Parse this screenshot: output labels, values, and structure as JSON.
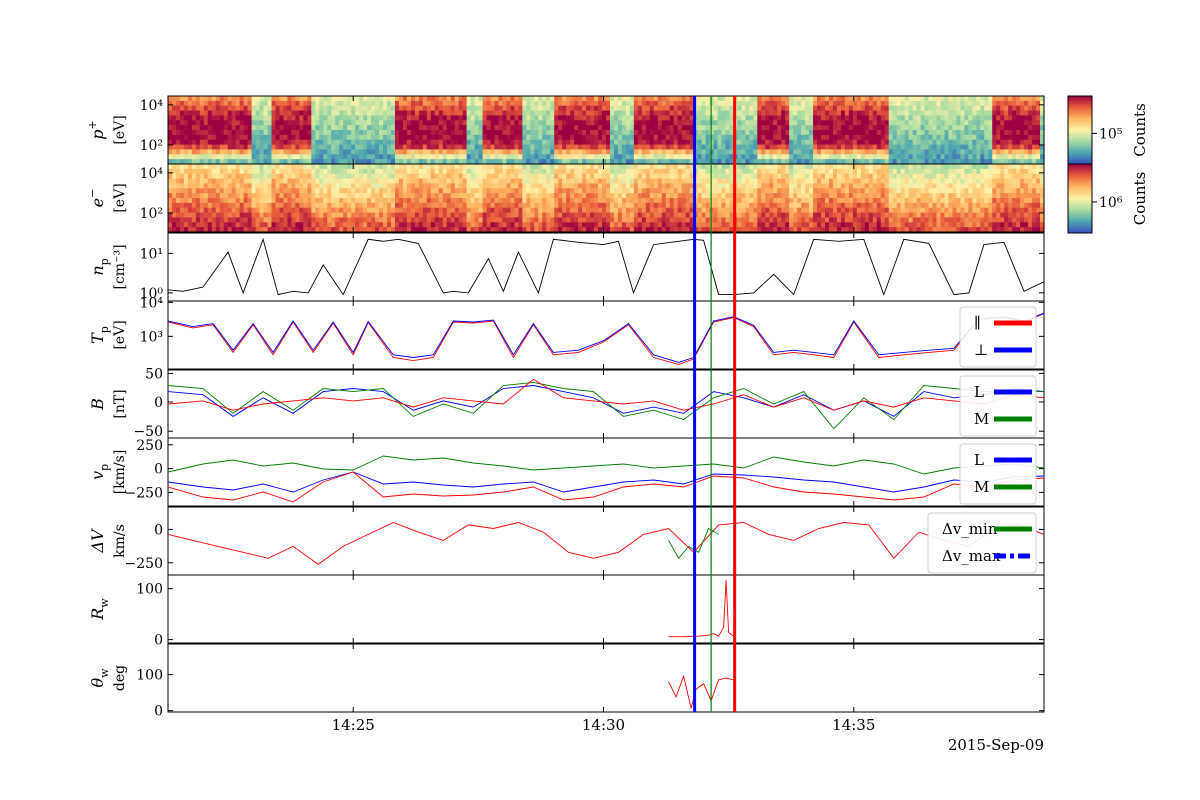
{
  "figure": {
    "date_label": "2015-Sep-09",
    "x_ticks": [
      "14:25",
      "14:30",
      "14:35"
    ],
    "x_range_min": [
      21.3,
      38.8
    ],
    "colorbar": {
      "label_top": "Counts",
      "label_bottom": "Counts",
      "tick_top": "10⁵",
      "tick_bottom": "10⁶",
      "colors": [
        "#3b4cc0",
        "#4ca6b0",
        "#a6dba0",
        "#fdf2a9",
        "#fdb863",
        "#e95c3b",
        "#9e0142"
      ]
    },
    "event_lines": [
      {
        "name": "start",
        "time_min": 31.82,
        "color": "#0000ff",
        "width": "thick"
      },
      {
        "name": "center",
        "time_min": 32.15,
        "color": "#008000",
        "width": "thin"
      },
      {
        "name": "end",
        "time_min": 32.62,
        "color": "#ff0000",
        "width": "thick"
      }
    ]
  },
  "chart_data": [
    {
      "type": "heatmap",
      "panel": "p+",
      "ylabel_main": "p",
      "ylabel_sup": "+",
      "ylabel_unit": "[eV]",
      "yscale": "log",
      "ytick_labels": [
        "10⁴",
        "10²"
      ],
      "hot_intervals_min": [
        [
          21.3,
          23.0
        ],
        [
          23.4,
          24.2
        ],
        [
          25.8,
          27.3
        ],
        [
          27.6,
          28.4
        ],
        [
          29.0,
          30.1
        ],
        [
          30.6,
          31.8
        ],
        [
          33.1,
          33.7
        ],
        [
          34.2,
          35.7
        ],
        [
          37.8,
          38.7
        ]
      ]
    },
    {
      "type": "heatmap",
      "panel": "e-",
      "ylabel_main": "e",
      "ylabel_sup": "−",
      "ylabel_unit": "[eV]",
      "yscale": "log",
      "ytick_labels": [
        "10⁴",
        "10²"
      ],
      "hot_intervals_min": [
        [
          21.3,
          23.0
        ],
        [
          23.4,
          24.2
        ],
        [
          25.8,
          27.3
        ],
        [
          27.6,
          28.4
        ],
        [
          29.0,
          30.1
        ],
        [
          30.6,
          31.8
        ],
        [
          33.1,
          33.7
        ],
        [
          34.2,
          35.7
        ],
        [
          37.8,
          38.7
        ]
      ]
    },
    {
      "type": "line",
      "panel": "n_p",
      "ylabel_main": "n",
      "ylabel_sub": "p",
      "ylabel_unit": "[cm⁻³]",
      "yscale": "log",
      "ytick_labels": [
        "10¹",
        "10⁰"
      ],
      "series": [
        {
          "color": "#000000",
          "x": [
            21.3,
            21.6,
            22.0,
            22.5,
            22.8,
            23.2,
            23.5,
            23.8,
            24.1,
            24.4,
            24.8,
            25.3,
            25.6,
            25.9,
            26.3,
            26.8,
            27.0,
            27.3,
            27.7,
            28.0,
            28.3,
            28.7,
            29.0,
            29.5,
            30.0,
            30.3,
            30.6,
            31.0,
            31.5,
            31.8,
            32.0,
            32.3,
            32.6,
            33.0,
            33.4,
            33.8,
            34.2,
            34.7,
            35.2,
            35.6,
            36.0,
            36.5,
            37.0,
            37.3,
            37.6,
            38.0,
            38.4,
            38.8
          ],
          "y": [
            1.3,
            1.2,
            1.5,
            10,
            1.1,
            20,
            1.0,
            1.2,
            1.1,
            5,
            1.0,
            20,
            18,
            20,
            16,
            1.1,
            1.2,
            1.1,
            7,
            1.2,
            10,
            1.1,
            20,
            17,
            15,
            18,
            1.1,
            15,
            18,
            20,
            19,
            1.0,
            1.0,
            1.1,
            3,
            1.0,
            20,
            18,
            20,
            1.0,
            20,
            16,
            1.0,
            1.1,
            15,
            17,
            1.2,
            2
          ]
        }
      ]
    },
    {
      "type": "line",
      "panel": "T_p",
      "ylabel_main": "T",
      "ylabel_sub": "p",
      "ylabel_unit": "[eV]",
      "yscale": "log",
      "ytick_labels": [
        "10⁴",
        "10³"
      ],
      "legend": [
        "∥",
        "⊥"
      ],
      "series": [
        {
          "name": "∥",
          "color": "#ff0000",
          "x": [
            21.3,
            21.8,
            22.2,
            22.6,
            23.0,
            23.4,
            23.8,
            24.2,
            24.6,
            25.0,
            25.3,
            25.8,
            26.2,
            26.6,
            27.0,
            27.4,
            27.8,
            28.2,
            28.6,
            29.0,
            29.5,
            30.0,
            30.5,
            31.0,
            31.5,
            31.8,
            32.2,
            32.6,
            33.0,
            33.4,
            33.8,
            34.2,
            34.6,
            35.0,
            35.5,
            36.0,
            36.5,
            37.0,
            37.5,
            38.0,
            38.4,
            38.8
          ],
          "y": [
            4000,
            3000,
            3500,
            900,
            3500,
            800,
            4000,
            900,
            3800,
            800,
            3900,
            700,
            600,
            700,
            4000,
            3800,
            4200,
            700,
            3500,
            800,
            900,
            1500,
            3500,
            700,
            500,
            650,
            4000,
            5000,
            3200,
            800,
            900,
            800,
            700,
            4000,
            700,
            800,
            900,
            1000,
            4500,
            5000,
            4000,
            6000
          ]
        },
        {
          "name": "⊥",
          "color": "#0000ff",
          "x": [
            21.3,
            21.8,
            22.2,
            22.6,
            23.0,
            23.4,
            23.8,
            24.2,
            24.6,
            25.0,
            25.3,
            25.8,
            26.2,
            26.6,
            27.0,
            27.4,
            27.8,
            28.2,
            28.6,
            29.0,
            29.5,
            30.0,
            30.5,
            31.0,
            31.5,
            31.8,
            32.2,
            32.6,
            33.0,
            33.4,
            33.8,
            34.2,
            34.6,
            35.0,
            35.5,
            36.0,
            36.5,
            37.0,
            37.5,
            38.0,
            38.4,
            38.8
          ],
          "y": [
            4200,
            3200,
            3700,
            1000,
            3700,
            900,
            4200,
            1000,
            4000,
            900,
            4100,
            800,
            700,
            800,
            4200,
            4000,
            4400,
            800,
            3700,
            900,
            1000,
            1600,
            3700,
            800,
            550,
            700,
            4200,
            5200,
            3400,
            900,
            1000,
            900,
            800,
            4200,
            800,
            900,
            1000,
            1100,
            4700,
            5200,
            4200,
            6200
          ]
        }
      ]
    },
    {
      "type": "line",
      "panel": "B",
      "ylabel_main": "B",
      "ylabel_unit": "[nT]",
      "ytick_labels": [
        "50",
        "0",
        "−50"
      ],
      "ylim": [
        -55,
        55
      ],
      "legend": [
        "L",
        "M"
      ],
      "series": [
        {
          "name": "L",
          "color": "#0000ff",
          "x": [
            21.3,
            22.0,
            22.6,
            23.2,
            23.8,
            24.4,
            25.0,
            25.6,
            26.2,
            26.8,
            27.4,
            28.0,
            28.6,
            29.2,
            29.8,
            30.4,
            31.0,
            31.6,
            32.2,
            32.8,
            33.4,
            34.0,
            34.6,
            35.2,
            35.8,
            36.4,
            37.0,
            37.6,
            38.2,
            38.8
          ],
          "y": [
            20,
            15,
            -20,
            10,
            -15,
            20,
            25,
            20,
            -10,
            5,
            -5,
            25,
            30,
            20,
            10,
            -15,
            -5,
            -15,
            20,
            10,
            -5,
            15,
            -10,
            5,
            -20,
            20,
            10,
            15,
            25,
            20
          ]
        },
        {
          "name": "M",
          "color": "#008000",
          "x": [
            21.3,
            22.0,
            22.6,
            23.2,
            23.8,
            24.4,
            25.0,
            25.6,
            26.2,
            26.8,
            27.4,
            28.0,
            28.6,
            29.2,
            29.8,
            30.4,
            31.0,
            31.6,
            32.2,
            32.8,
            33.4,
            34.0,
            34.6,
            35.2,
            35.8,
            36.4,
            37.0,
            37.6,
            38.2,
            38.8
          ],
          "y": [
            30,
            25,
            -15,
            20,
            -10,
            25,
            20,
            25,
            -20,
            0,
            -15,
            30,
            35,
            25,
            20,
            -20,
            -10,
            -25,
            10,
            25,
            0,
            20,
            -40,
            10,
            -25,
            30,
            25,
            20,
            20,
            20
          ]
        },
        {
          "color": "#ff0000",
          "x": [
            21.3,
            22.0,
            22.6,
            23.2,
            23.8,
            24.4,
            25.0,
            25.6,
            26.2,
            26.8,
            27.4,
            28.0,
            28.6,
            29.2,
            29.8,
            30.4,
            31.0,
            31.6,
            32.2,
            32.8,
            33.4,
            34.0,
            34.6,
            35.2,
            35.8,
            36.4,
            37.0,
            37.6,
            38.2,
            38.8
          ],
          "y": [
            0,
            5,
            -10,
            0,
            5,
            10,
            5,
            10,
            -5,
            10,
            5,
            0,
            40,
            10,
            5,
            0,
            5,
            -10,
            0,
            15,
            -5,
            10,
            -10,
            5,
            -5,
            10,
            5,
            0,
            15,
            10
          ]
        }
      ]
    },
    {
      "type": "line",
      "panel": "v_p",
      "ylabel_main": "v",
      "ylabel_sub": "p",
      "ylabel_unit": "[km/s]",
      "ytick_labels": [
        "250",
        "0",
        "−250"
      ],
      "ylim": [
        -340,
        340
      ],
      "legend": [
        "L",
        "M"
      ],
      "series": [
        {
          "name": "L",
          "color": "#0000ff",
          "x": [
            21.3,
            22.0,
            22.6,
            23.2,
            23.8,
            24.4,
            25.0,
            25.6,
            26.2,
            26.8,
            27.4,
            28.0,
            28.6,
            29.2,
            29.8,
            30.4,
            31.0,
            31.6,
            32.2,
            32.8,
            33.4,
            34.0,
            34.6,
            35.2,
            35.8,
            36.4,
            37.0,
            37.6,
            38.2,
            38.8
          ],
          "y": [
            -100,
            -150,
            -180,
            -120,
            -200,
            -80,
            0,
            -120,
            -100,
            -130,
            -150,
            -120,
            -100,
            -200,
            -150,
            -100,
            -80,
            -120,
            -20,
            -30,
            -50,
            -80,
            -100,
            -150,
            -200,
            -150,
            -80,
            -100,
            -50,
            -40
          ]
        },
        {
          "name": "M",
          "color": "#008000",
          "x": [
            21.3,
            22.0,
            22.6,
            23.2,
            23.8,
            24.4,
            25.0,
            25.6,
            26.2,
            26.8,
            27.4,
            28.0,
            28.6,
            29.2,
            29.8,
            30.4,
            31.0,
            31.6,
            32.2,
            32.8,
            33.4,
            34.0,
            34.6,
            35.2,
            35.8,
            36.4,
            37.0,
            37.6,
            38.2,
            38.8
          ],
          "y": [
            0,
            80,
            120,
            60,
            90,
            30,
            20,
            160,
            120,
            140,
            90,
            60,
            20,
            40,
            60,
            80,
            40,
            60,
            80,
            40,
            150,
            100,
            60,
            120,
            80,
            -20,
            40,
            60,
            80,
            40
          ]
        },
        {
          "color": "#ff0000",
          "x": [
            21.3,
            22.0,
            22.6,
            23.2,
            23.8,
            24.4,
            25.0,
            25.6,
            26.2,
            26.8,
            27.4,
            28.0,
            28.6,
            29.2,
            29.8,
            30.4,
            31.0,
            31.6,
            32.2,
            32.8,
            33.4,
            34.0,
            34.6,
            35.2,
            35.8,
            36.4,
            37.0,
            37.6,
            38.2,
            38.8
          ],
          "y": [
            -150,
            -250,
            -280,
            -200,
            -300,
            -100,
            0,
            -250,
            -220,
            -240,
            -230,
            -200,
            -150,
            -280,
            -250,
            -150,
            -120,
            -150,
            -40,
            -60,
            -150,
            -200,
            -220,
            -250,
            -280,
            -250,
            -120,
            -150,
            -80,
            -60
          ]
        }
      ]
    },
    {
      "type": "line",
      "panel": "ΔV",
      "ylabel_main": "ΔV",
      "ylabel_unit": "km/s",
      "ytick_labels": [
        "0",
        "−250"
      ],
      "ylim": [
        -340,
        230
      ],
      "legend": [
        "Δv_min",
        "Δv_max"
      ],
      "series": [
        {
          "color": "#ff0000",
          "x": [
            21.3,
            21.8,
            22.3,
            22.8,
            23.3,
            23.8,
            24.3,
            24.8,
            25.3,
            25.8,
            26.3,
            26.8,
            27.3,
            27.8,
            28.3,
            28.8,
            29.3,
            29.8,
            30.3,
            30.8,
            31.3,
            31.8,
            32.3,
            32.8,
            33.3,
            33.8,
            34.3,
            34.8,
            35.3,
            35.8,
            36.3,
            36.8,
            37.3,
            37.8,
            38.3,
            38.8
          ],
          "y": [
            0,
            -50,
            -100,
            -150,
            -200,
            -100,
            -250,
            -100,
            0,
            100,
            20,
            -50,
            80,
            50,
            100,
            20,
            -150,
            -200,
            -150,
            0,
            50,
            -150,
            80,
            100,
            0,
            -50,
            50,
            100,
            80,
            -200,
            20,
            -50,
            -100,
            50,
            80,
            0
          ]
        },
        {
          "name": "Δv_min",
          "color": "#008000",
          "x": [
            31.3,
            31.5,
            31.7,
            31.9,
            32.1,
            32.3
          ],
          "y": [
            -50,
            -200,
            -100,
            -150,
            50,
            0
          ]
        }
      ]
    },
    {
      "type": "line",
      "panel": "R_w",
      "ylabel_main": "R",
      "ylabel_sub": "w",
      "ytick_labels": [
        "100",
        "0"
      ],
      "ylim": [
        -10,
        120
      ],
      "series": [
        {
          "color": "#ff0000",
          "x": [
            31.3,
            31.6,
            31.9,
            32.1,
            32.2,
            32.3,
            32.4,
            32.45,
            32.5,
            32.6
          ],
          "y": [
            2,
            2,
            3,
            5,
            8,
            3,
            20,
            110,
            10,
            3
          ]
        }
      ]
    },
    {
      "type": "line",
      "panel": "θ_w",
      "ylabel_main": "θ",
      "ylabel_sub": "w",
      "ylabel_unit": "deg",
      "ytick_labels": [
        "100",
        "0"
      ],
      "ylim": [
        0,
        180
      ],
      "series": [
        {
          "color": "#ff0000",
          "x": [
            31.3,
            31.45,
            31.6,
            31.75,
            31.85,
            32.0,
            32.15,
            32.3,
            32.45,
            32.6
          ],
          "y": [
            80,
            40,
            95,
            10,
            60,
            75,
            30,
            85,
            90,
            85
          ]
        }
      ]
    }
  ]
}
